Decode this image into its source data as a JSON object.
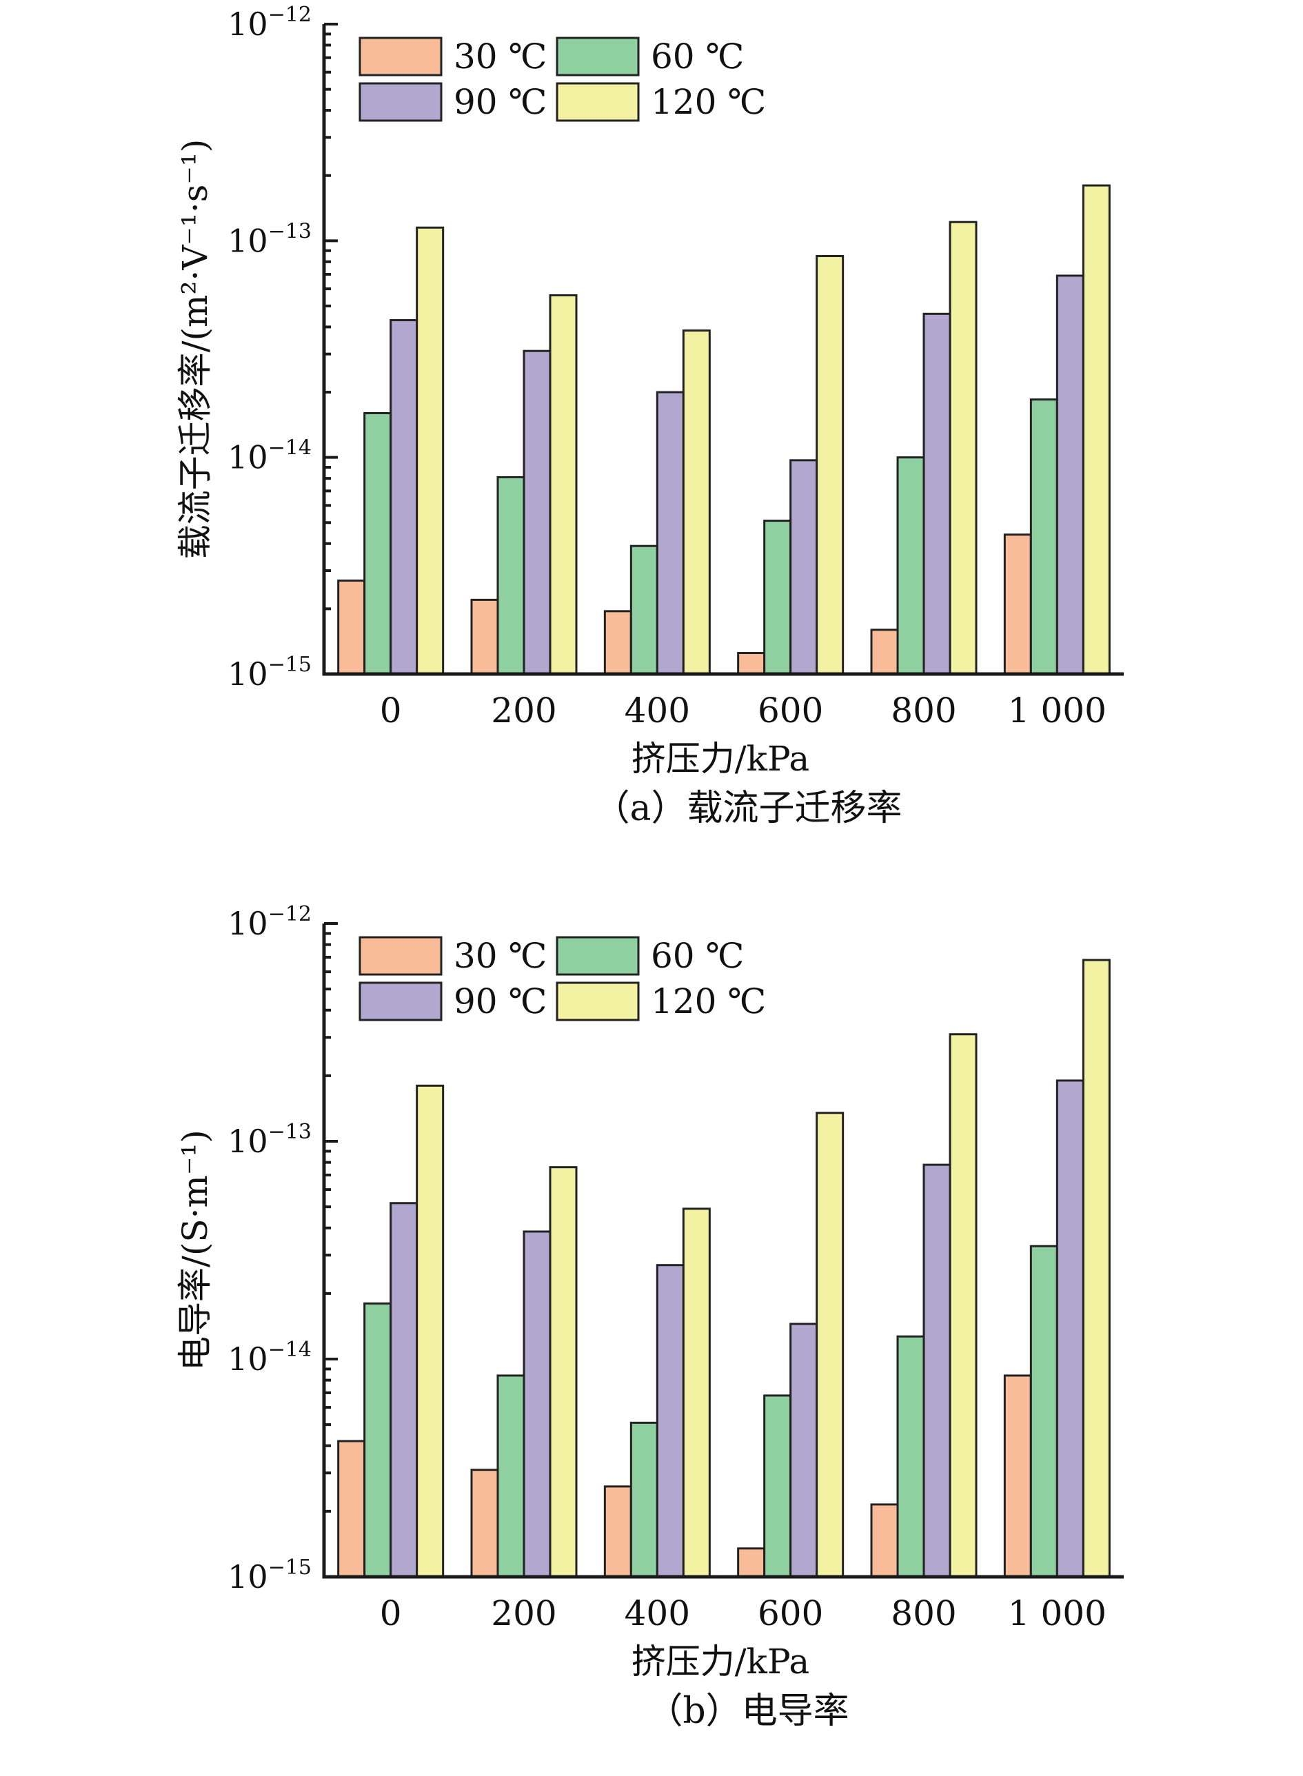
{
  "chart_data": [
    {
      "type": "bar",
      "ylabel": "载流子迁移率/(m²·V⁻¹·s⁻¹)",
      "xlabel": "挤压力/kPa",
      "caption": "（a）载流子迁移率",
      "yscale": "log",
      "ylim": [
        1e-15,
        1e-12
      ],
      "yticks": [
        {
          "value": 1e-12,
          "base": "10",
          "exp": "−12"
        },
        {
          "value": 1e-13,
          "base": "10",
          "exp": "−13"
        },
        {
          "value": 1e-14,
          "base": "10",
          "exp": "−14"
        },
        {
          "value": 1e-15,
          "base": "10",
          "exp": "−15"
        }
      ],
      "categories": [
        "0",
        "200",
        "400",
        "600",
        "800",
        "1 000"
      ],
      "legend_position": "top-left",
      "series": [
        {
          "name": "30 ℃",
          "color": "#F8BC98",
          "values": [
            2.7e-15,
            2.2e-15,
            1.95e-15,
            1.25e-15,
            1.6e-15,
            4.4e-15
          ]
        },
        {
          "name": "60 ℃",
          "color": "#8FD0A0",
          "values": [
            1.6e-14,
            8.1e-15,
            3.9e-15,
            5.1e-15,
            1e-14,
            1.85e-14
          ]
        },
        {
          "name": "90 ℃",
          "color": "#B2A7CF",
          "values": [
            4.3e-14,
            3.1e-14,
            2e-14,
            9.7e-15,
            4.6e-14,
            6.9e-14
          ]
        },
        {
          "name": "120 ℃",
          "color": "#F3F1A2",
          "values": [
            1.15e-13,
            5.6e-14,
            3.85e-14,
            8.5e-14,
            1.22e-13,
            1.8e-13
          ]
        }
      ]
    },
    {
      "type": "bar",
      "ylabel": "电导率/(S·m⁻¹)",
      "xlabel": "挤压力/kPa",
      "caption": "（b）电导率",
      "yscale": "log",
      "ylim": [
        1e-15,
        1e-12
      ],
      "yticks": [
        {
          "value": 1e-12,
          "base": "10",
          "exp": "−12"
        },
        {
          "value": 1e-13,
          "base": "10",
          "exp": "−13"
        },
        {
          "value": 1e-14,
          "base": "10",
          "exp": "−14"
        },
        {
          "value": 1e-15,
          "base": "10",
          "exp": "−15"
        }
      ],
      "categories": [
        "0",
        "200",
        "400",
        "600",
        "800",
        "1 000"
      ],
      "legend_position": "top-left",
      "series": [
        {
          "name": "30 ℃",
          "color": "#F8BC98",
          "values": [
            4.2e-15,
            3.1e-15,
            2.6e-15,
            1.35e-15,
            2.15e-15,
            8.4e-15
          ]
        },
        {
          "name": "60 ℃",
          "color": "#8FD0A0",
          "values": [
            1.8e-14,
            8.4e-15,
            5.1e-15,
            6.8e-15,
            1.27e-14,
            3.3e-14
          ]
        },
        {
          "name": "90 ℃",
          "color": "#B2A7CF",
          "values": [
            5.2e-14,
            3.85e-14,
            2.7e-14,
            1.45e-14,
            7.8e-14,
            1.9e-13
          ]
        },
        {
          "name": "120 ℃",
          "color": "#F3F1A2",
          "values": [
            1.8e-13,
            7.6e-14,
            4.9e-14,
            1.35e-13,
            3.1e-13,
            6.8e-13
          ]
        }
      ]
    }
  ]
}
